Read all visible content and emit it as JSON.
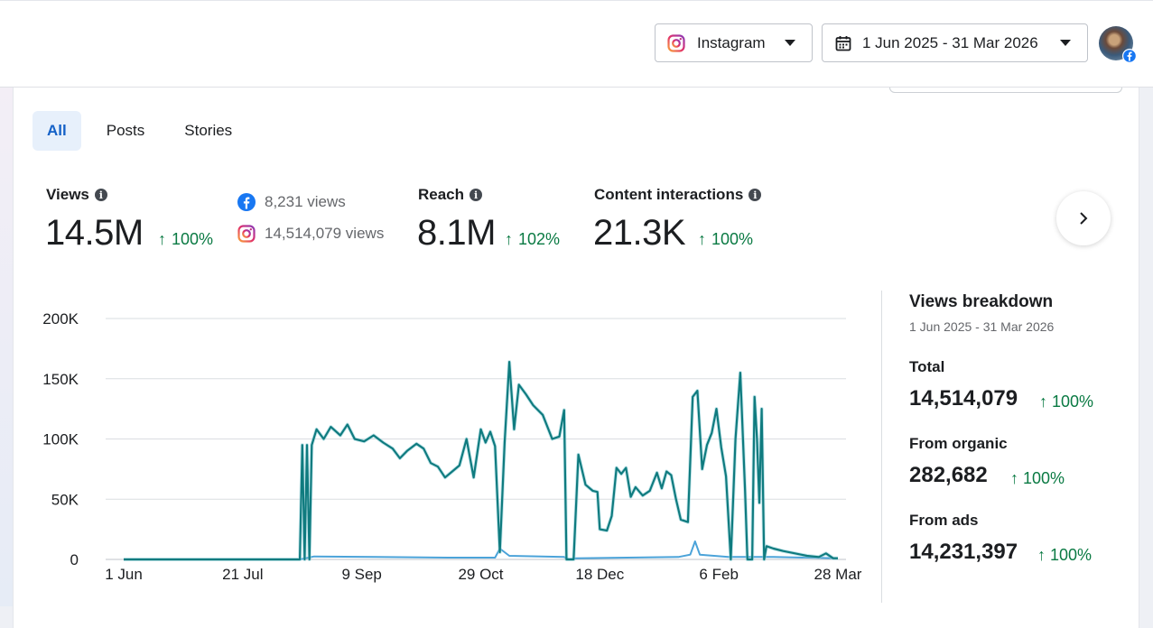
{
  "header": {
    "platform_label": "Instagram",
    "date_range_label": "1 Jun 2025 - 31 Mar 2026"
  },
  "tabs": [
    {
      "label": "All",
      "active": true
    },
    {
      "label": "Posts",
      "active": false
    },
    {
      "label": "Stories",
      "active": false
    }
  ],
  "metrics": {
    "views": {
      "label": "Views",
      "value": "14.5M",
      "change": "100%"
    },
    "sources": [
      {
        "platform": "facebook",
        "text": "8,231 views"
      },
      {
        "platform": "instagram",
        "text": "14,514,079 views"
      }
    ],
    "reach": {
      "label": "Reach",
      "value": "8.1M",
      "change": "102%"
    },
    "interactions": {
      "label": "Content interactions",
      "value": "21.3K",
      "change": "100%"
    }
  },
  "breakdown": {
    "title": "Views breakdown",
    "subtitle": "1 Jun 2025 - 31 Mar 2026",
    "total": {
      "label": "Total",
      "value": "14,514,079",
      "change": "100%"
    },
    "organic": {
      "label": "From organic",
      "value": "282,682",
      "change": "100%"
    },
    "ads": {
      "label": "From ads",
      "value": "14,231,397",
      "change": "100%"
    }
  },
  "colors": {
    "accent": "#1461c7",
    "positive": "#0a7a43",
    "series_main": "#0f7b7f",
    "series_light": "#4ba3d9"
  },
  "chart_data": {
    "type": "line",
    "x_ticks": [
      "1 Jun",
      "21 Jul",
      "9 Sep",
      "29 Oct",
      "18 Dec",
      "6 Feb",
      "28 Mar"
    ],
    "y_ticks": [
      "0",
      "50K",
      "100K",
      "150K",
      "200K"
    ],
    "ylim": [
      0,
      200000
    ],
    "x_start": "2025-06-01",
    "x_end": "2026-03-28",
    "series": [
      {
        "points": [
          [
            "2025-06-01",
            0
          ],
          [
            "2025-08-14",
            0
          ],
          [
            "2025-08-15",
            95000
          ],
          [
            "2025-08-16",
            0
          ],
          [
            "2025-08-17",
            95000
          ],
          [
            "2025-08-18",
            0
          ],
          [
            "2025-08-19",
            95000
          ],
          [
            "2025-08-21",
            108000
          ],
          [
            "2025-08-24",
            100000
          ],
          [
            "2025-08-27",
            110000
          ],
          [
            "2025-08-31",
            103000
          ],
          [
            "2025-09-03",
            112000
          ],
          [
            "2025-09-06",
            100000
          ],
          [
            "2025-09-10",
            98000
          ],
          [
            "2025-09-14",
            103000
          ],
          [
            "2025-09-18",
            97000
          ],
          [
            "2025-09-22",
            92000
          ],
          [
            "2025-09-25",
            84000
          ],
          [
            "2025-09-28",
            90000
          ],
          [
            "2025-10-02",
            96000
          ],
          [
            "2025-10-05",
            92000
          ],
          [
            "2025-10-08",
            80000
          ],
          [
            "2025-10-11",
            77000
          ],
          [
            "2025-10-14",
            68000
          ],
          [
            "2025-10-17",
            73000
          ],
          [
            "2025-10-20",
            78000
          ],
          [
            "2025-10-23",
            100000
          ],
          [
            "2025-10-26",
            68000
          ],
          [
            "2025-10-29",
            108000
          ],
          [
            "2025-10-31",
            97000
          ],
          [
            "2025-11-02",
            106000
          ],
          [
            "2025-11-04",
            94000
          ],
          [
            "2025-11-06",
            6000
          ],
          [
            "2025-11-08",
            97000
          ],
          [
            "2025-11-10",
            164000
          ],
          [
            "2025-11-12",
            108000
          ],
          [
            "2025-11-14",
            145000
          ],
          [
            "2025-11-17",
            137000
          ],
          [
            "2025-11-20",
            128000
          ],
          [
            "2025-11-24",
            120000
          ],
          [
            "2025-11-28",
            100000
          ],
          [
            "2025-12-01",
            102000
          ],
          [
            "2025-12-03",
            124000
          ],
          [
            "2025-12-04",
            0
          ],
          [
            "2025-12-07",
            0
          ],
          [
            "2025-12-09",
            87000
          ],
          [
            "2025-12-12",
            62000
          ],
          [
            "2025-12-15",
            57000
          ],
          [
            "2025-12-17",
            56000
          ],
          [
            "2025-12-18",
            25000
          ],
          [
            "2025-12-21",
            24000
          ],
          [
            "2025-12-23",
            36000
          ],
          [
            "2025-12-25",
            76000
          ],
          [
            "2025-12-27",
            71000
          ],
          [
            "2025-12-29",
            76000
          ],
          [
            "2025-12-31",
            52000
          ],
          [
            "2026-01-02",
            60000
          ],
          [
            "2026-01-05",
            53000
          ],
          [
            "2026-01-08",
            57000
          ],
          [
            "2026-01-11",
            72000
          ],
          [
            "2026-01-13",
            59000
          ],
          [
            "2026-01-15",
            73000
          ],
          [
            "2026-01-17",
            70000
          ],
          [
            "2026-01-19",
            50000
          ],
          [
            "2026-01-21",
            33000
          ],
          [
            "2026-01-24",
            31000
          ],
          [
            "2026-01-26",
            135000
          ],
          [
            "2026-01-28",
            140000
          ],
          [
            "2026-01-30",
            75000
          ],
          [
            "2026-02-01",
            95000
          ],
          [
            "2026-02-03",
            105000
          ],
          [
            "2026-02-05",
            125000
          ],
          [
            "2026-02-07",
            93000
          ],
          [
            "2026-02-09",
            69000
          ],
          [
            "2026-02-11",
            0
          ],
          [
            "2026-02-13",
            100000
          ],
          [
            "2026-02-15",
            155000
          ],
          [
            "2026-02-17",
            57000
          ],
          [
            "2026-02-18",
            0
          ],
          [
            "2026-02-20",
            0
          ],
          [
            "2026-02-21",
            135000
          ],
          [
            "2026-02-22",
            100000
          ],
          [
            "2026-02-23",
            47000
          ],
          [
            "2026-02-24",
            125000
          ],
          [
            "2026-02-25",
            0
          ],
          [
            "2026-02-26",
            11000
          ],
          [
            "2026-03-01",
            9000
          ],
          [
            "2026-03-05",
            7000
          ],
          [
            "2026-03-10",
            5000
          ],
          [
            "2026-03-15",
            3000
          ],
          [
            "2026-03-20",
            2000
          ],
          [
            "2026-03-23",
            5000
          ],
          [
            "2026-03-26",
            1000
          ],
          [
            "2026-03-28",
            1000
          ]
        ]
      },
      {
        "points": [
          [
            "2025-06-01",
            0
          ],
          [
            "2025-08-14",
            0
          ],
          [
            "2025-08-20",
            2500
          ],
          [
            "2025-09-15",
            2000
          ],
          [
            "2025-10-15",
            1500
          ],
          [
            "2025-11-04",
            1500
          ],
          [
            "2025-11-06",
            9000
          ],
          [
            "2025-11-10",
            3000
          ],
          [
            "2025-12-03",
            2000
          ],
          [
            "2025-12-05",
            0
          ],
          [
            "2025-12-08",
            1000
          ],
          [
            "2026-01-20",
            2000
          ],
          [
            "2026-01-25",
            4000
          ],
          [
            "2026-01-27",
            15000
          ],
          [
            "2026-01-29",
            4000
          ],
          [
            "2026-02-10",
            2000
          ],
          [
            "2026-03-01",
            2000
          ],
          [
            "2026-03-28",
            1000
          ]
        ]
      }
    ]
  }
}
